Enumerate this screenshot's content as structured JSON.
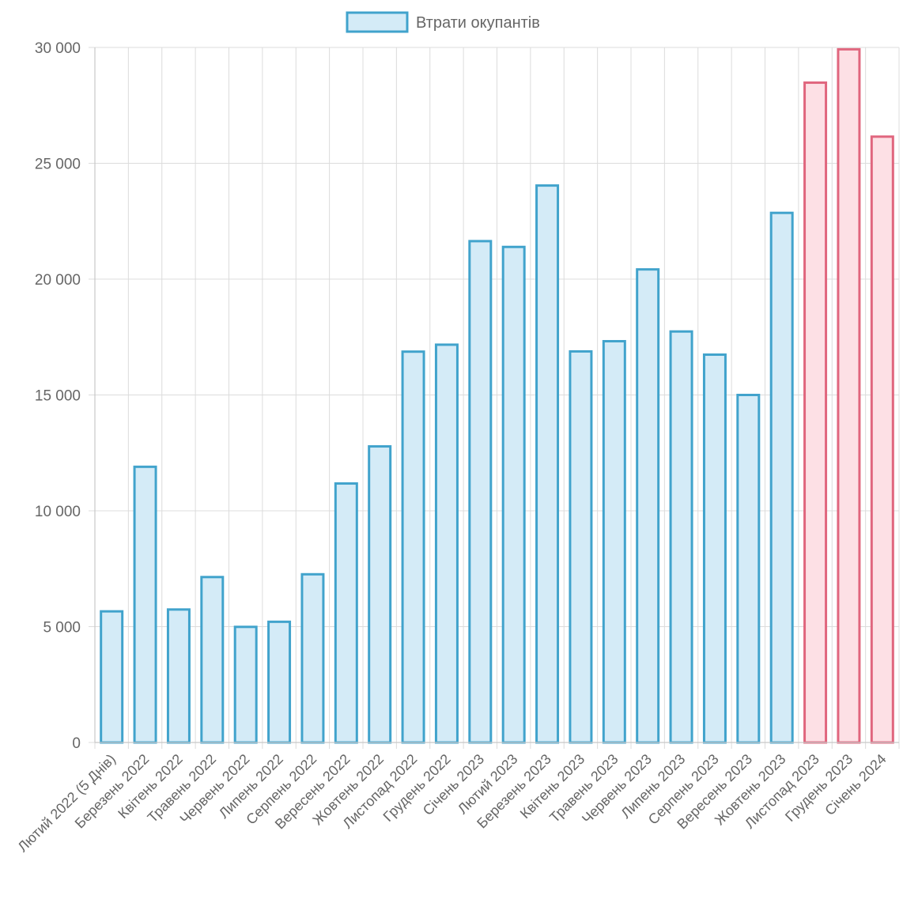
{
  "chart_data": {
    "type": "bar",
    "title": "",
    "xlabel": "",
    "ylabel": "",
    "ylim": [
      0,
      30000
    ],
    "yticks": [
      0,
      5000,
      10000,
      15000,
      20000,
      25000,
      30000
    ],
    "ytick_labels": [
      "0",
      "5 000",
      "10 000",
      "15 000",
      "20 000",
      "25 000",
      "30 000"
    ],
    "grid": true,
    "legend_position": "top-center",
    "categories": [
      "Лютий 2022 (5 Днів)",
      "Березень 2022",
      "Квітень 2022",
      "Травень 2022",
      "Червень 2022",
      "Липень 2022",
      "Серпень 2022",
      "Вересень 2022",
      "Жовтень 2022",
      "Листопад 2022",
      "Грудень 2022",
      "Січень 2023",
      "Лютий 2023",
      "Березень 2023",
      "Квітень 2023",
      "Травень 2023",
      "Червень 2023",
      "Липень 2023",
      "Серпень 2023",
      "Вересень 2023",
      "Жовтень 2023",
      "Листопад 2023",
      "Грудень 2023",
      "Січень 2024"
    ],
    "series": [
      {
        "name": "Втрати окупантів",
        "values": [
          5660,
          11900,
          5740,
          7140,
          4990,
          5210,
          7260,
          11180,
          12780,
          16870,
          17170,
          21640,
          21390,
          24040,
          16880,
          17320,
          20420,
          17740,
          16740,
          15000,
          22860,
          28480,
          29920,
          26150
        ],
        "fill_color": "#d4ebf7",
        "stroke_color": "#41a3cc",
        "highlight_from_index": 21,
        "highlight_fill_color": "#fde0e5",
        "highlight_stroke_color": "#e0667e"
      }
    ]
  }
}
